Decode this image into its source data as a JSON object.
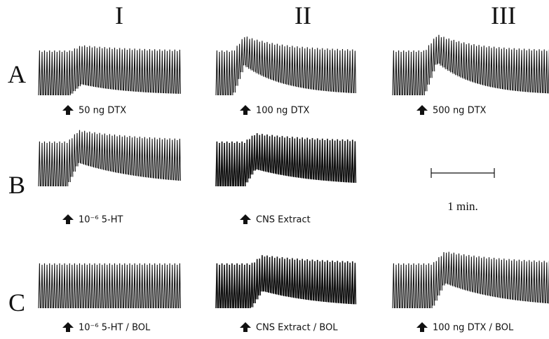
{
  "columns": [
    "I",
    "II",
    "III"
  ],
  "rows": [
    {
      "label": "A",
      "panels": [
        "50  ng  DTX",
        "100 ng  DTX",
        "500 ng  DTX"
      ]
    },
    {
      "label": "B",
      "panels": [
        "10⁻⁶  5-HT",
        "CNS   Extract"
      ]
    },
    {
      "label": "C",
      "panels": [
        "10⁻⁶  5-HT / BOL",
        "CNS  Extract / BOL",
        "100 ng DTX / BOL"
      ]
    }
  ],
  "scale_bar": {
    "label": "1 min."
  }
}
